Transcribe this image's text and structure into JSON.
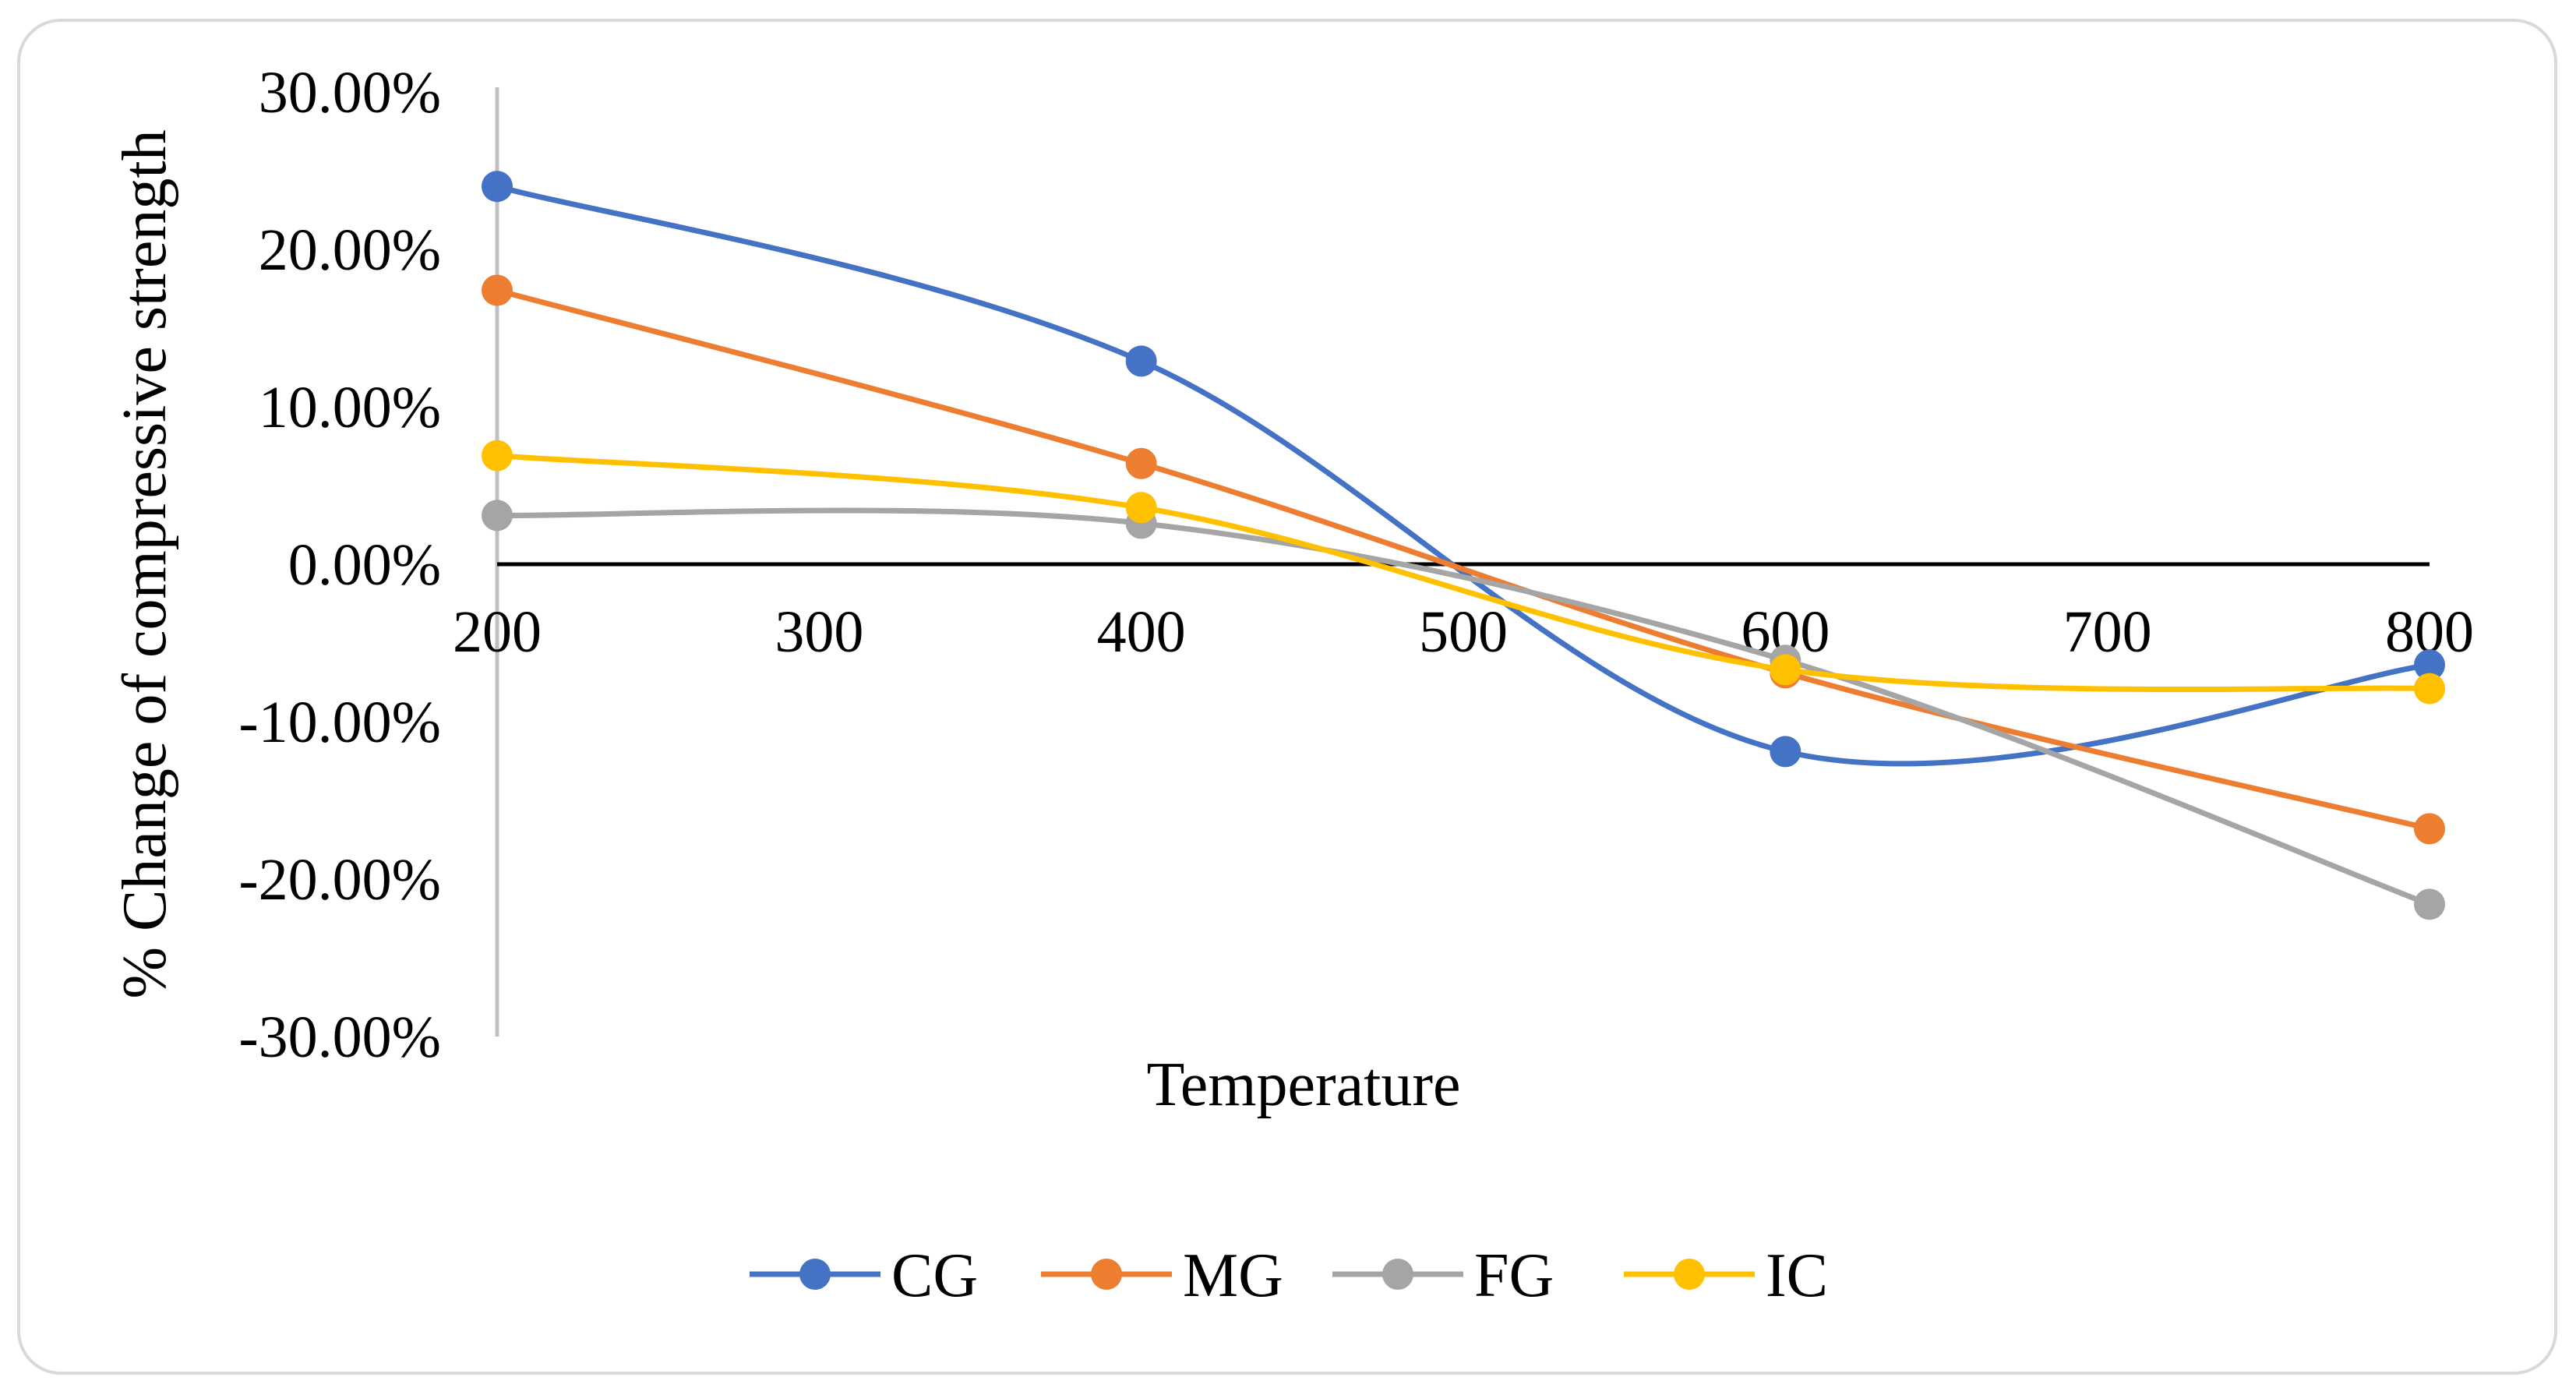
{
  "chart_data": {
    "type": "line",
    "title": "",
    "xlabel": "Temperature",
    "ylabel": "% Change of compressive strength",
    "x": [
      200,
      400,
      600,
      800
    ],
    "xlim": [
      200,
      800
    ],
    "xticks": [
      200,
      300,
      400,
      500,
      600,
      700,
      800
    ],
    "xtick_labels": [
      "200",
      "300",
      "400",
      "500",
      "600",
      "700",
      "800"
    ],
    "ylim": [
      -0.3,
      0.3
    ],
    "yticks": [
      0.3,
      0.2,
      0.1,
      0.0,
      -0.1,
      -0.2,
      -0.3
    ],
    "ytick_labels": [
      "30.00%",
      "20.00%",
      "10.00%",
      "0.00%",
      "-10.00%",
      "-20.00%",
      "-30.00%"
    ],
    "smooth": true,
    "grid": false,
    "legend_position": "bottom",
    "series": [
      {
        "name": "CG",
        "color": "#4472C4",
        "values": [
          0.24,
          0.129,
          -0.119,
          -0.064
        ]
      },
      {
        "name": "MG",
        "color": "#ED7D31",
        "values": [
          0.174,
          0.064,
          -0.069,
          -0.168
        ]
      },
      {
        "name": "FG",
        "color": "#A5A5A5",
        "values": [
          0.031,
          0.026,
          -0.061,
          -0.216
        ]
      },
      {
        "name": "IC",
        "color": "#FFC000",
        "values": [
          0.069,
          0.036,
          -0.067,
          -0.079
        ]
      }
    ]
  }
}
